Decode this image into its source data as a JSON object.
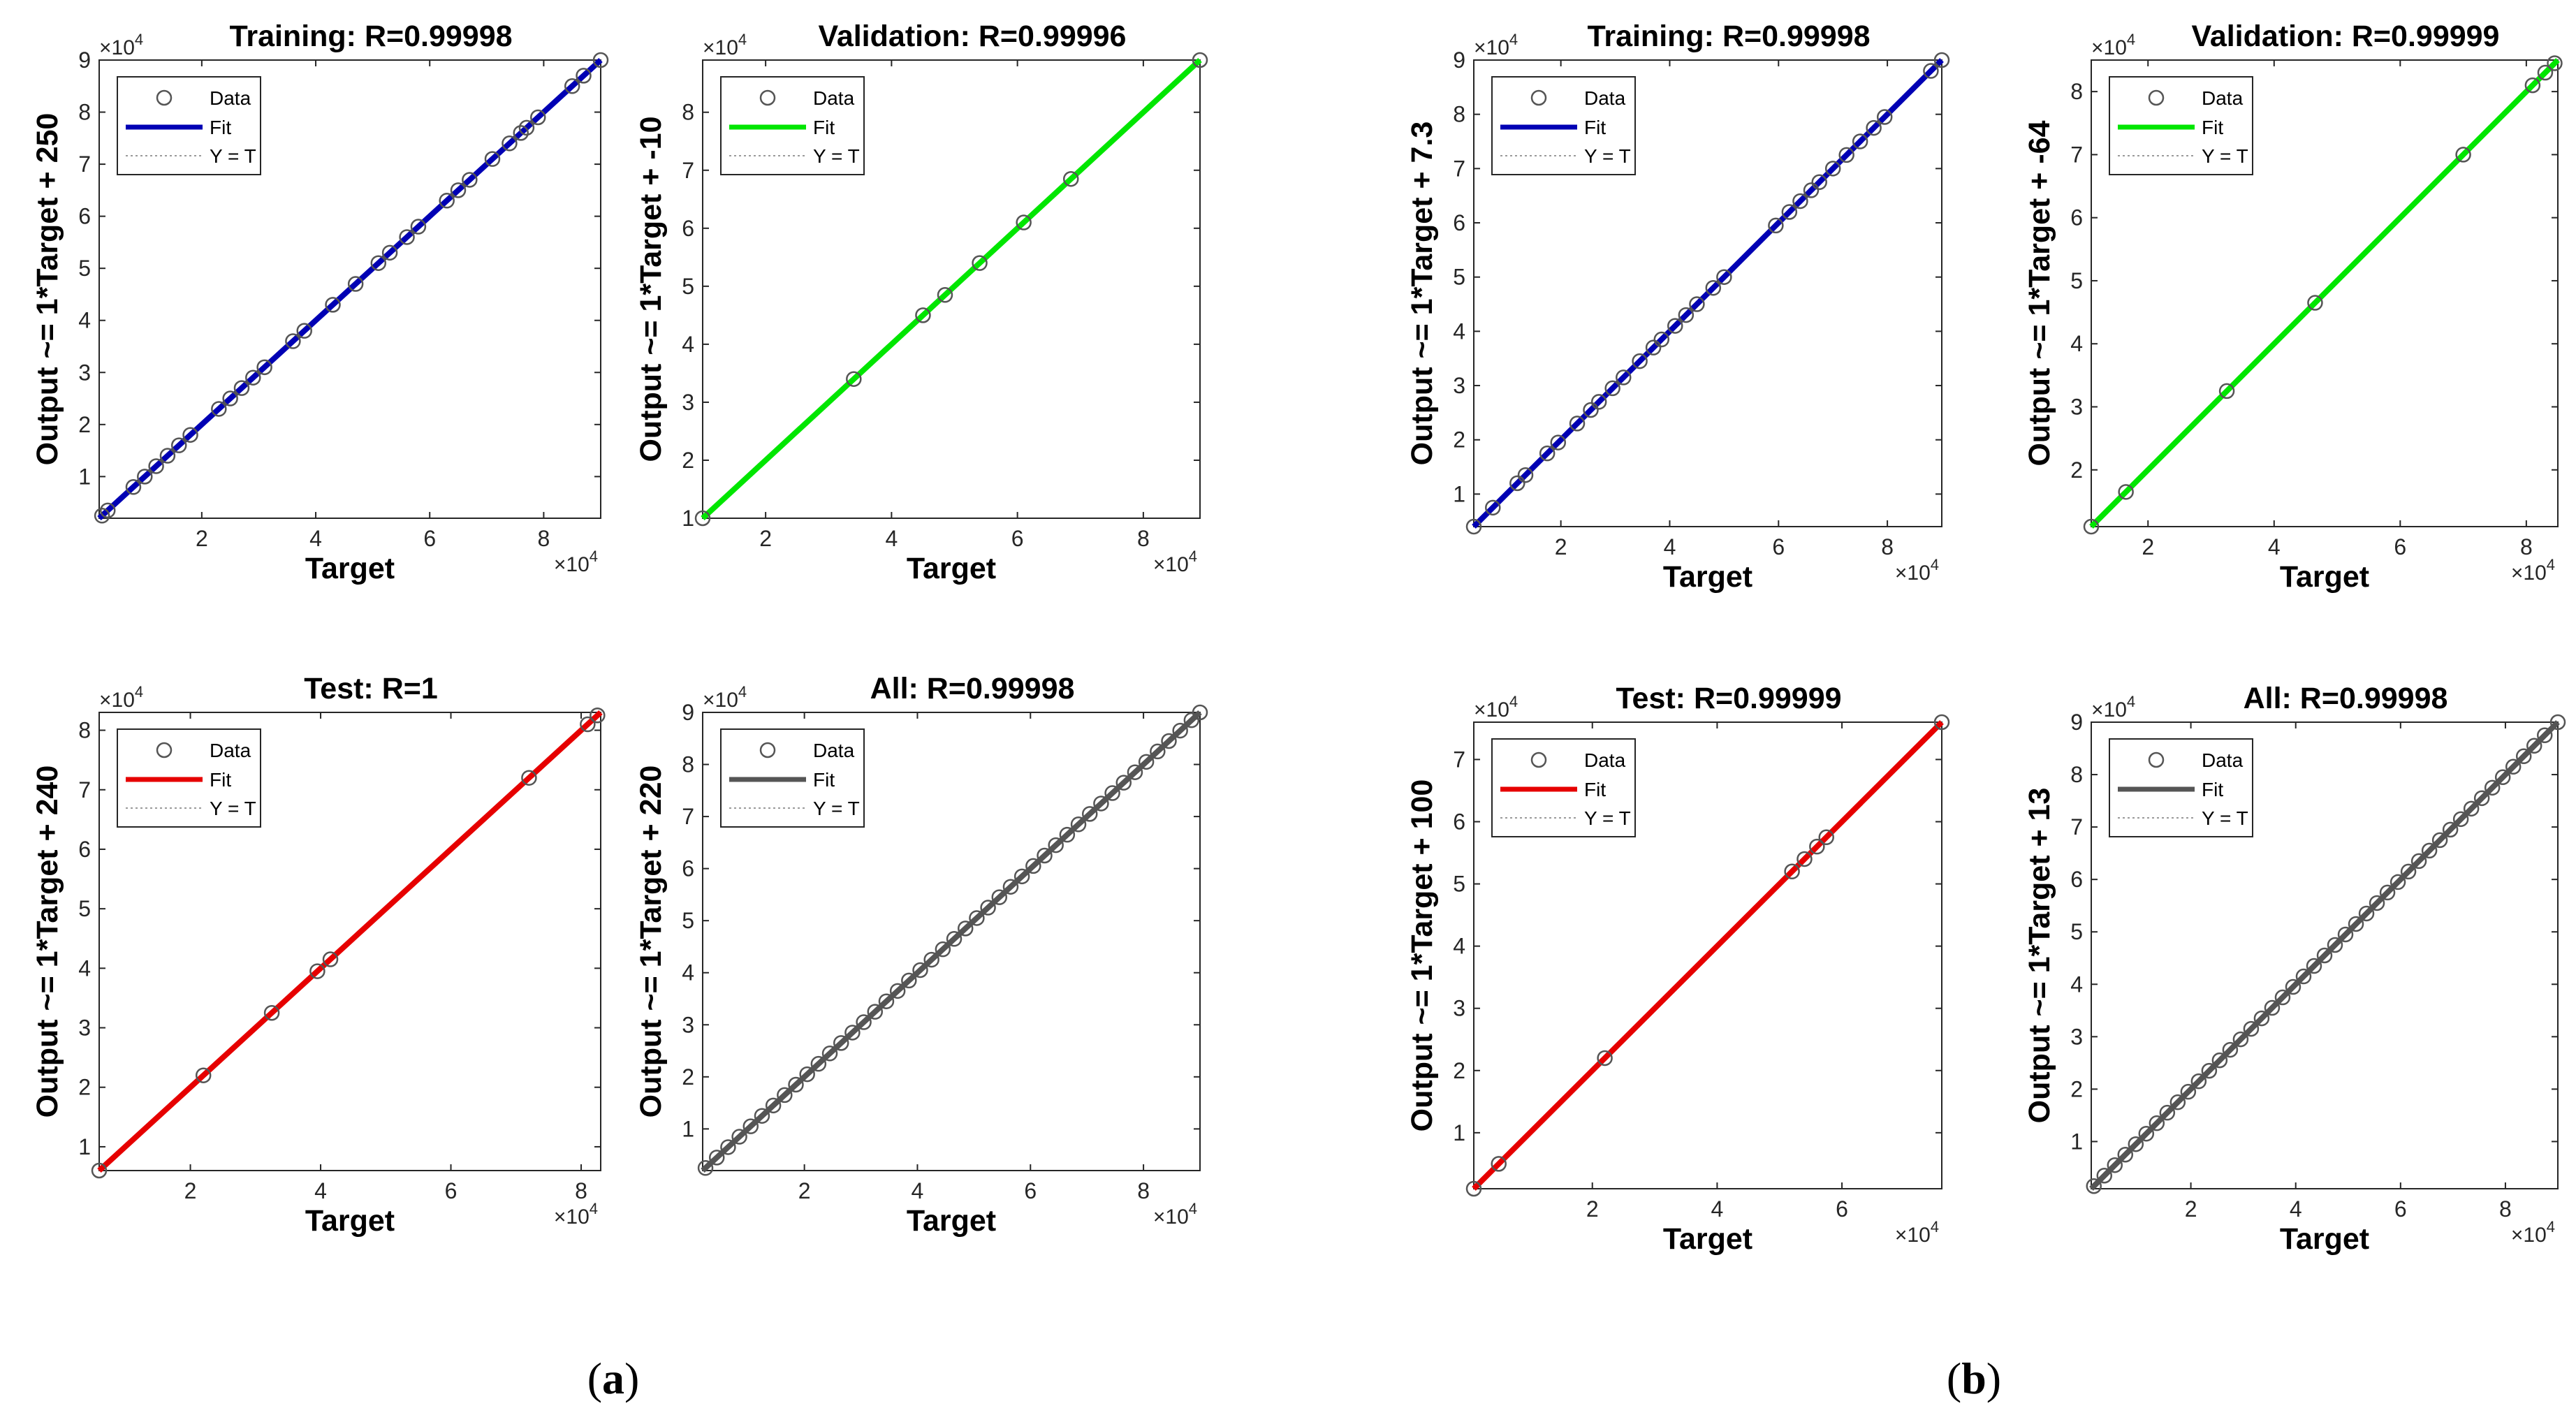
{
  "panel_labels": [
    {
      "open": "(",
      "letter": "a",
      "close": ")"
    },
    {
      "open": "(",
      "letter": "b",
      "close": ")"
    }
  ],
  "legend": {
    "data": "Data",
    "fit": "Fit",
    "yt": "Y = T"
  },
  "colors": {
    "training": "#0000b4",
    "validation": "#00e600",
    "test": "#e60000",
    "all": "#555555",
    "yt": "#9a9a9a",
    "marker": "#555555"
  },
  "chart_data": [
    {
      "type": "scatter",
      "panel": "a",
      "title": "Training: R=0.99998",
      "xlabel": "Target",
      "ylabel": "Output ~= 1*Target + 250",
      "exponent": "4",
      "xlim": [
        0.2,
        9.0
      ],
      "ylim": [
        0.2,
        9.0
      ],
      "xticks": [
        2,
        4,
        6,
        8
      ],
      "yticks": [
        1,
        2,
        3,
        4,
        5,
        6,
        7,
        8,
        9
      ],
      "fit_color": "training",
      "fit": [
        [
          0.2,
          0.2
        ],
        [
          9.0,
          9.0
        ]
      ],
      "x": [
        0.25,
        0.35,
        0.8,
        1.0,
        1.2,
        1.4,
        1.6,
        1.8,
        2.3,
        2.5,
        2.7,
        2.9,
        3.1,
        3.6,
        3.8,
        4.3,
        4.7,
        5.1,
        5.3,
        5.6,
        5.8,
        6.3,
        6.5,
        6.7,
        7.1,
        7.4,
        7.6,
        7.7,
        7.9,
        8.5,
        8.7,
        9.0
      ],
      "y": [
        0.25,
        0.35,
        0.8,
        1.0,
        1.2,
        1.4,
        1.6,
        1.8,
        2.3,
        2.5,
        2.7,
        2.9,
        3.1,
        3.6,
        3.8,
        4.3,
        4.7,
        5.1,
        5.3,
        5.6,
        5.8,
        6.3,
        6.5,
        6.7,
        7.1,
        7.4,
        7.6,
        7.7,
        7.9,
        8.5,
        8.7,
        9.0
      ]
    },
    {
      "type": "scatter",
      "panel": "a",
      "title": "Validation: R=0.99996",
      "xlabel": "Target",
      "ylabel": "Output ~= 1*Target + -10",
      "exponent": "4",
      "xlim": [
        1.0,
        8.9
      ],
      "ylim": [
        1.0,
        8.9
      ],
      "xticks": [
        2,
        4,
        6,
        8
      ],
      "yticks": [
        1,
        2,
        3,
        4,
        5,
        6,
        7,
        8
      ],
      "fit_color": "validation",
      "fit": [
        [
          1.0,
          1.0
        ],
        [
          8.9,
          8.9
        ]
      ],
      "x": [
        1.0,
        3.4,
        4.5,
        4.85,
        5.4,
        6.1,
        6.85,
        8.9
      ],
      "y": [
        1.0,
        3.4,
        4.5,
        4.85,
        5.4,
        6.1,
        6.85,
        8.9
      ]
    },
    {
      "type": "scatter",
      "panel": "a",
      "title": "Test: R=1",
      "xlabel": "Target",
      "ylabel": "Output ~= 1*Target + 240",
      "exponent": "4",
      "xlim": [
        0.6,
        8.3
      ],
      "ylim": [
        0.6,
        8.3
      ],
      "xticks": [
        2,
        4,
        6,
        8
      ],
      "yticks": [
        1,
        2,
        3,
        4,
        5,
        6,
        7,
        8
      ],
      "fit_color": "test",
      "fit": [
        [
          0.6,
          0.6
        ],
        [
          8.3,
          8.3
        ]
      ],
      "x": [
        0.6,
        2.2,
        3.25,
        3.95,
        4.15,
        7.2,
        8.1,
        8.25
      ],
      "y": [
        0.6,
        2.2,
        3.25,
        3.95,
        4.15,
        7.2,
        8.1,
        8.25
      ]
    },
    {
      "type": "scatter",
      "panel": "a",
      "title": "All: R=0.99998",
      "xlabel": "Target",
      "ylabel": "Output ~= 1*Target + 220",
      "exponent": "4",
      "xlim": [
        0.2,
        9.0
      ],
      "ylim": [
        0.2,
        9.0
      ],
      "xticks": [
        2,
        4,
        6,
        8
      ],
      "yticks": [
        1,
        2,
        3,
        4,
        5,
        6,
        7,
        8,
        9
      ],
      "fit_color": "all",
      "fit": [
        [
          0.2,
          0.2
        ],
        [
          9.0,
          9.0
        ]
      ],
      "x": [
        0.25,
        0.45,
        0.65,
        0.85,
        1.05,
        1.25,
        1.45,
        1.65,
        1.85,
        2.05,
        2.25,
        2.45,
        2.65,
        2.85,
        3.05,
        3.25,
        3.45,
        3.65,
        3.85,
        4.05,
        4.25,
        4.45,
        4.65,
        4.85,
        5.05,
        5.25,
        5.45,
        5.65,
        5.85,
        6.05,
        6.25,
        6.45,
        6.65,
        6.85,
        7.05,
        7.25,
        7.45,
        7.65,
        7.85,
        8.05,
        8.25,
        8.45,
        8.65,
        8.85,
        9.0
      ],
      "y": [
        0.25,
        0.45,
        0.65,
        0.85,
        1.05,
        1.25,
        1.45,
        1.65,
        1.85,
        2.05,
        2.25,
        2.45,
        2.65,
        2.85,
        3.05,
        3.25,
        3.45,
        3.65,
        3.85,
        4.05,
        4.25,
        4.45,
        4.65,
        4.85,
        5.05,
        5.25,
        5.45,
        5.65,
        5.85,
        6.05,
        6.25,
        6.45,
        6.65,
        6.85,
        7.05,
        7.25,
        7.45,
        7.65,
        7.85,
        8.05,
        8.25,
        8.45,
        8.65,
        8.85,
        9.0
      ]
    },
    {
      "type": "scatter",
      "panel": "b",
      "title": "Training: R=0.99998",
      "xlabel": "Target",
      "ylabel": "Output ~= 1*Target + 7.3",
      "exponent": "4",
      "xlim": [
        0.4,
        9.0
      ],
      "ylim": [
        0.4,
        9.0
      ],
      "xticks": [
        2,
        4,
        6,
        8
      ],
      "yticks": [
        1,
        2,
        3,
        4,
        5,
        6,
        7,
        8,
        9
      ],
      "fit_color": "training",
      "fit": [
        [
          0.4,
          0.4
        ],
        [
          9.0,
          9.0
        ]
      ],
      "x": [
        0.4,
        0.75,
        1.2,
        1.35,
        1.75,
        1.95,
        2.3,
        2.55,
        2.7,
        2.95,
        3.15,
        3.45,
        3.7,
        3.85,
        4.1,
        4.3,
        4.5,
        4.8,
        5.0,
        5.95,
        6.2,
        6.4,
        6.6,
        6.75,
        7.0,
        7.25,
        7.5,
        7.75,
        7.95,
        8.8,
        9.0
      ],
      "y": [
        0.4,
        0.75,
        1.2,
        1.35,
        1.75,
        1.95,
        2.3,
        2.55,
        2.7,
        2.95,
        3.15,
        3.45,
        3.7,
        3.85,
        4.1,
        4.3,
        4.5,
        4.8,
        5.0,
        5.95,
        6.2,
        6.4,
        6.6,
        6.75,
        7.0,
        7.25,
        7.5,
        7.75,
        7.95,
        8.8,
        9.0
      ]
    },
    {
      "type": "scatter",
      "panel": "b",
      "title": "Validation: R=0.99999",
      "xlabel": "Target",
      "ylabel": "Output ~= 1*Target + -64",
      "exponent": "4",
      "xlim": [
        1.1,
        8.5
      ],
      "ylim": [
        1.1,
        8.5
      ],
      "xticks": [
        2,
        4,
        6,
        8
      ],
      "yticks": [
        2,
        3,
        4,
        5,
        6,
        7,
        8
      ],
      "fit_color": "validation",
      "fit": [
        [
          1.1,
          1.1
        ],
        [
          8.5,
          8.5
        ]
      ],
      "x": [
        1.1,
        1.65,
        3.25,
        4.65,
        7.0,
        8.1,
        8.3,
        8.45
      ],
      "y": [
        1.1,
        1.65,
        3.25,
        4.65,
        7.0,
        8.1,
        8.3,
        8.45
      ]
    },
    {
      "type": "scatter",
      "panel": "b",
      "title": "Test: R=0.99999",
      "xlabel": "Target",
      "ylabel": "Output ~= 1*Target + 100",
      "exponent": "4",
      "xlim": [
        0.1,
        7.6
      ],
      "ylim": [
        0.1,
        7.6
      ],
      "xticks": [
        2,
        4,
        6
      ],
      "yticks": [
        1,
        2,
        3,
        4,
        5,
        6,
        7
      ],
      "fit_color": "test",
      "fit": [
        [
          0.1,
          0.1
        ],
        [
          7.6,
          7.6
        ]
      ],
      "x": [
        0.1,
        0.5,
        2.2,
        5.2,
        5.4,
        5.6,
        5.75,
        7.6
      ],
      "y": [
        0.1,
        0.5,
        2.2,
        5.2,
        5.4,
        5.6,
        5.75,
        7.6
      ]
    },
    {
      "type": "scatter",
      "panel": "b",
      "title": "All: R=0.99998",
      "xlabel": "Target",
      "ylabel": "Output ~= 1*Target + 13",
      "exponent": "4",
      "xlim": [
        0.1,
        9.0
      ],
      "ylim": [
        0.1,
        9.0
      ],
      "xticks": [
        2,
        4,
        6,
        8
      ],
      "yticks": [
        1,
        2,
        3,
        4,
        5,
        6,
        7,
        8,
        9
      ],
      "fit_color": "all",
      "fit": [
        [
          0.1,
          0.1
        ],
        [
          9.0,
          9.0
        ]
      ],
      "x": [
        0.15,
        0.35,
        0.55,
        0.75,
        0.95,
        1.15,
        1.35,
        1.55,
        1.75,
        1.95,
        2.15,
        2.35,
        2.55,
        2.75,
        2.95,
        3.15,
        3.35,
        3.55,
        3.75,
        3.95,
        4.15,
        4.35,
        4.55,
        4.75,
        4.95,
        5.15,
        5.35,
        5.55,
        5.75,
        5.95,
        6.15,
        6.35,
        6.55,
        6.75,
        6.95,
        7.15,
        7.35,
        7.55,
        7.75,
        7.95,
        8.15,
        8.35,
        8.55,
        8.75,
        9.0
      ],
      "y": [
        0.15,
        0.35,
        0.55,
        0.75,
        0.95,
        1.15,
        1.35,
        1.55,
        1.75,
        1.95,
        2.15,
        2.35,
        2.55,
        2.75,
        2.95,
        3.15,
        3.35,
        3.55,
        3.75,
        3.95,
        4.15,
        4.35,
        4.55,
        4.75,
        4.95,
        5.15,
        5.35,
        5.55,
        5.75,
        5.95,
        6.15,
        6.35,
        6.55,
        6.75,
        6.95,
        7.15,
        7.35,
        7.55,
        7.75,
        7.95,
        8.15,
        8.35,
        8.55,
        8.75,
        9.0
      ]
    }
  ]
}
